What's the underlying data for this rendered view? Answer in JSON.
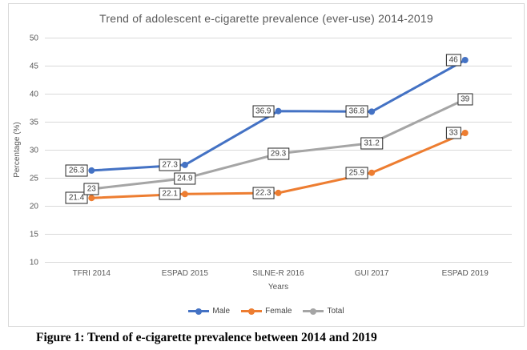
{
  "chart_data": {
    "type": "line",
    "title": "Trend of adolescent e-cigarette prevalence (ever-use) 2014-2019",
    "categories": [
      "TFRI 2014",
      "ESPAD 2015",
      "SILNE-R 2016",
      "GUI 2017",
      "ESPAD 2019"
    ],
    "series": [
      {
        "name": "Male",
        "color": "#4472C4",
        "values": [
          26.3,
          27.3,
          36.9,
          36.8,
          46
        ],
        "label_placement": "left"
      },
      {
        "name": "Female",
        "color": "#ED7D31",
        "values": [
          21.4,
          22.1,
          22.3,
          25.9,
          33
        ],
        "label_placement": "left"
      },
      {
        "name": "Total",
        "color": "#A5A5A5",
        "values": [
          23,
          24.9,
          29.3,
          31.2,
          39
        ],
        "label_placement": "center"
      }
    ],
    "xlabel": "Years",
    "ylabel": "Percentage (%)",
    "ylim": [
      10,
      50
    ],
    "ytick_step": 5,
    "grid": true,
    "grid_color": "#D9D9D9",
    "axis_text_color": "#595959",
    "label_border_color": "#262626",
    "legend_position": "bottom"
  },
  "caption": "Figure 1: Trend of e-cigarette prevalence between 2014 and 2019"
}
